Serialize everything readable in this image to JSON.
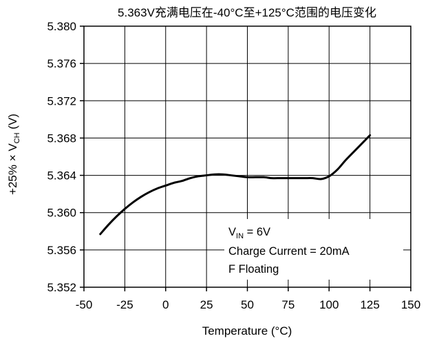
{
  "chart_data": {
    "type": "line",
    "title": "5.363V充满电压在-40°C至+125°C范围的电压变化",
    "xlabel": "Temperature (°C)",
    "ylabel": {
      "prefix": "+25% × V",
      "sub": "CH",
      "suffix": " (V)"
    },
    "xlim": [
      -50,
      150
    ],
    "ylim": [
      5.352,
      5.38
    ],
    "x_ticks": [
      "-50",
      "-25",
      "0",
      "25",
      "50",
      "75",
      "100",
      "125",
      "150"
    ],
    "y_ticks": [
      "5.380",
      "5.376",
      "5.372",
      "5.368",
      "5.364",
      "5.360",
      "5.356",
      "5.352"
    ],
    "grid": true,
    "series": [
      {
        "x": [
          -40,
          -35,
          -30,
          -25,
          -20,
          -15,
          -10,
          -5,
          0,
          5,
          10,
          15,
          20,
          25,
          30,
          35,
          40,
          45,
          50,
          55,
          60,
          65,
          70,
          75,
          80,
          85,
          90,
          95,
          100,
          105,
          110,
          115,
          120,
          125
        ],
        "y": [
          5.3577,
          5.3587,
          5.3596,
          5.3604,
          5.3611,
          5.3617,
          5.3622,
          5.3626,
          5.3629,
          5.3632,
          5.3634,
          5.3637,
          5.3639,
          5.364,
          5.3641,
          5.3641,
          5.364,
          5.3639,
          5.3638,
          5.3638,
          5.3638,
          5.3637,
          5.3637,
          5.3637,
          5.3637,
          5.3637,
          5.3637,
          5.3636,
          5.3639,
          5.3646,
          5.3656,
          5.3665,
          5.3674,
          5.3683
        ]
      }
    ],
    "annotations": {
      "vin": {
        "prefix": "V",
        "sub": "IN",
        "suffix": " = 6V"
      },
      "line2": "Charge Current = 20mA",
      "line3": "F Floating"
    }
  }
}
